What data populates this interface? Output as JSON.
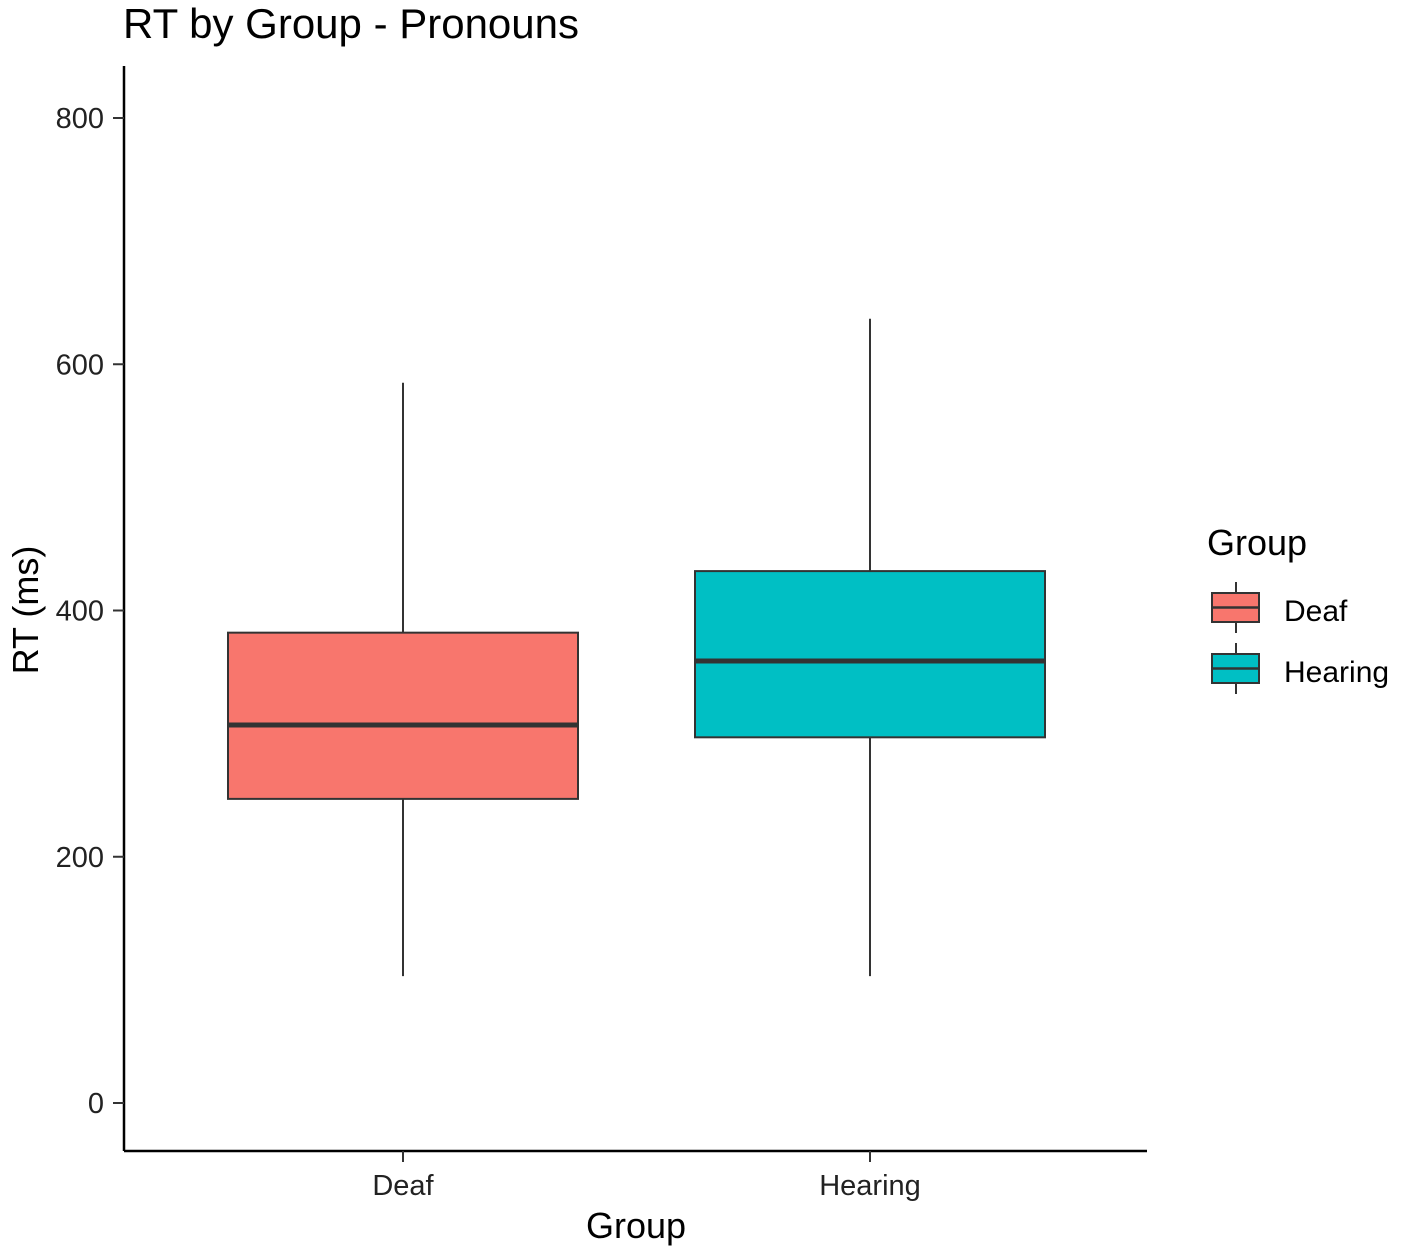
{
  "chart_data": {
    "type": "box",
    "title": "RT by Group - Pronouns",
    "xlabel": "Group",
    "ylabel": "RT (ms)",
    "ylim": [
      -40,
      840
    ],
    "y_ticks": [
      0,
      200,
      400,
      600,
      800
    ],
    "categories": [
      "Deaf",
      "Hearing"
    ],
    "boxes": [
      {
        "category": "Deaf",
        "min": 103,
        "q1": 247,
        "median": 307,
        "q3": 382,
        "max": 585,
        "color": "#F8766D"
      },
      {
        "category": "Hearing",
        "min": 103,
        "q1": 297,
        "median": 359,
        "q3": 432,
        "max": 637,
        "color": "#00BFC4"
      }
    ],
    "legend": {
      "title": "Group",
      "position": "right",
      "entries": [
        {
          "label": "Deaf",
          "color": "#F8766D"
        },
        {
          "label": "Hearing",
          "color": "#00BFC4"
        }
      ]
    },
    "grid": false
  }
}
